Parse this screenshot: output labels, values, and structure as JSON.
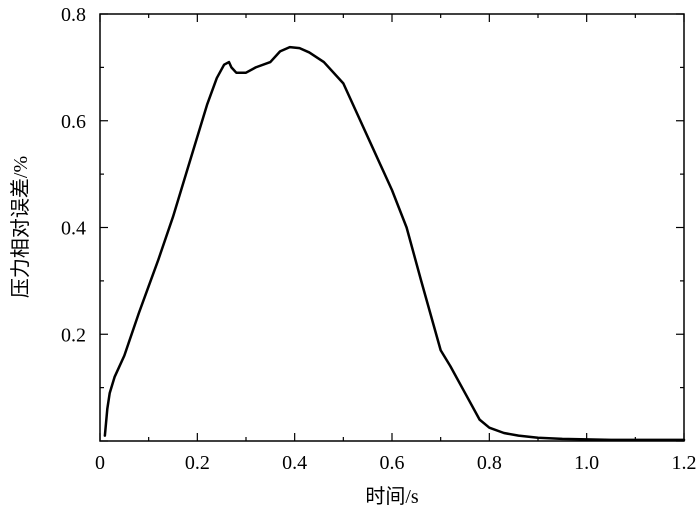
{
  "chart_data": {
    "type": "line",
    "title": "",
    "xlabel": "时间/s",
    "ylabel": "压力相对误差/%",
    "xlim": [
      0,
      1.2
    ],
    "ylim": [
      0,
      0.8
    ],
    "x_ticks": [
      {
        "value": 0,
        "label": "0"
      },
      {
        "value": 0.2,
        "label": "0.2"
      },
      {
        "value": 0.4,
        "label": "0.4"
      },
      {
        "value": 0.6,
        "label": "0.6"
      },
      {
        "value": 0.8,
        "label": "0.8"
      },
      {
        "value": 1.0,
        "label": "1.0"
      },
      {
        "value": 1.2,
        "label": "1.2"
      }
    ],
    "y_ticks": [
      {
        "value": 0.2,
        "label": "0.2"
      },
      {
        "value": 0.4,
        "label": "0.4"
      },
      {
        "value": 0.6,
        "label": "0.6"
      },
      {
        "value": 0.8,
        "label": "0.8"
      }
    ],
    "grid": false,
    "legend": "none",
    "line_color": "#000000",
    "series": [
      {
        "x": [
          0.01,
          0.015,
          0.02,
          0.03,
          0.05,
          0.08,
          0.1,
          0.12,
          0.15,
          0.18,
          0.2,
          0.22,
          0.24,
          0.255,
          0.265,
          0.27,
          0.28,
          0.3,
          0.32,
          0.35,
          0.37,
          0.39,
          0.41,
          0.43,
          0.46,
          0.5,
          0.53,
          0.56,
          0.6,
          0.63,
          0.66,
          0.7,
          0.72,
          0.75,
          0.78,
          0.8,
          0.83,
          0.86,
          0.9,
          0.95,
          1.0,
          1.05,
          1.1,
          1.15,
          1.2
        ],
        "y": [
          0.01,
          0.06,
          0.09,
          0.12,
          0.16,
          0.24,
          0.29,
          0.34,
          0.42,
          0.51,
          0.57,
          0.63,
          0.68,
          0.705,
          0.71,
          0.7,
          0.69,
          0.69,
          0.7,
          0.71,
          0.73,
          0.738,
          0.736,
          0.728,
          0.71,
          0.67,
          0.61,
          0.55,
          0.47,
          0.4,
          0.3,
          0.17,
          0.14,
          0.09,
          0.04,
          0.025,
          0.015,
          0.01,
          0.006,
          0.004,
          0.003,
          0.002,
          0.002,
          0.002,
          0.002
        ]
      }
    ]
  }
}
